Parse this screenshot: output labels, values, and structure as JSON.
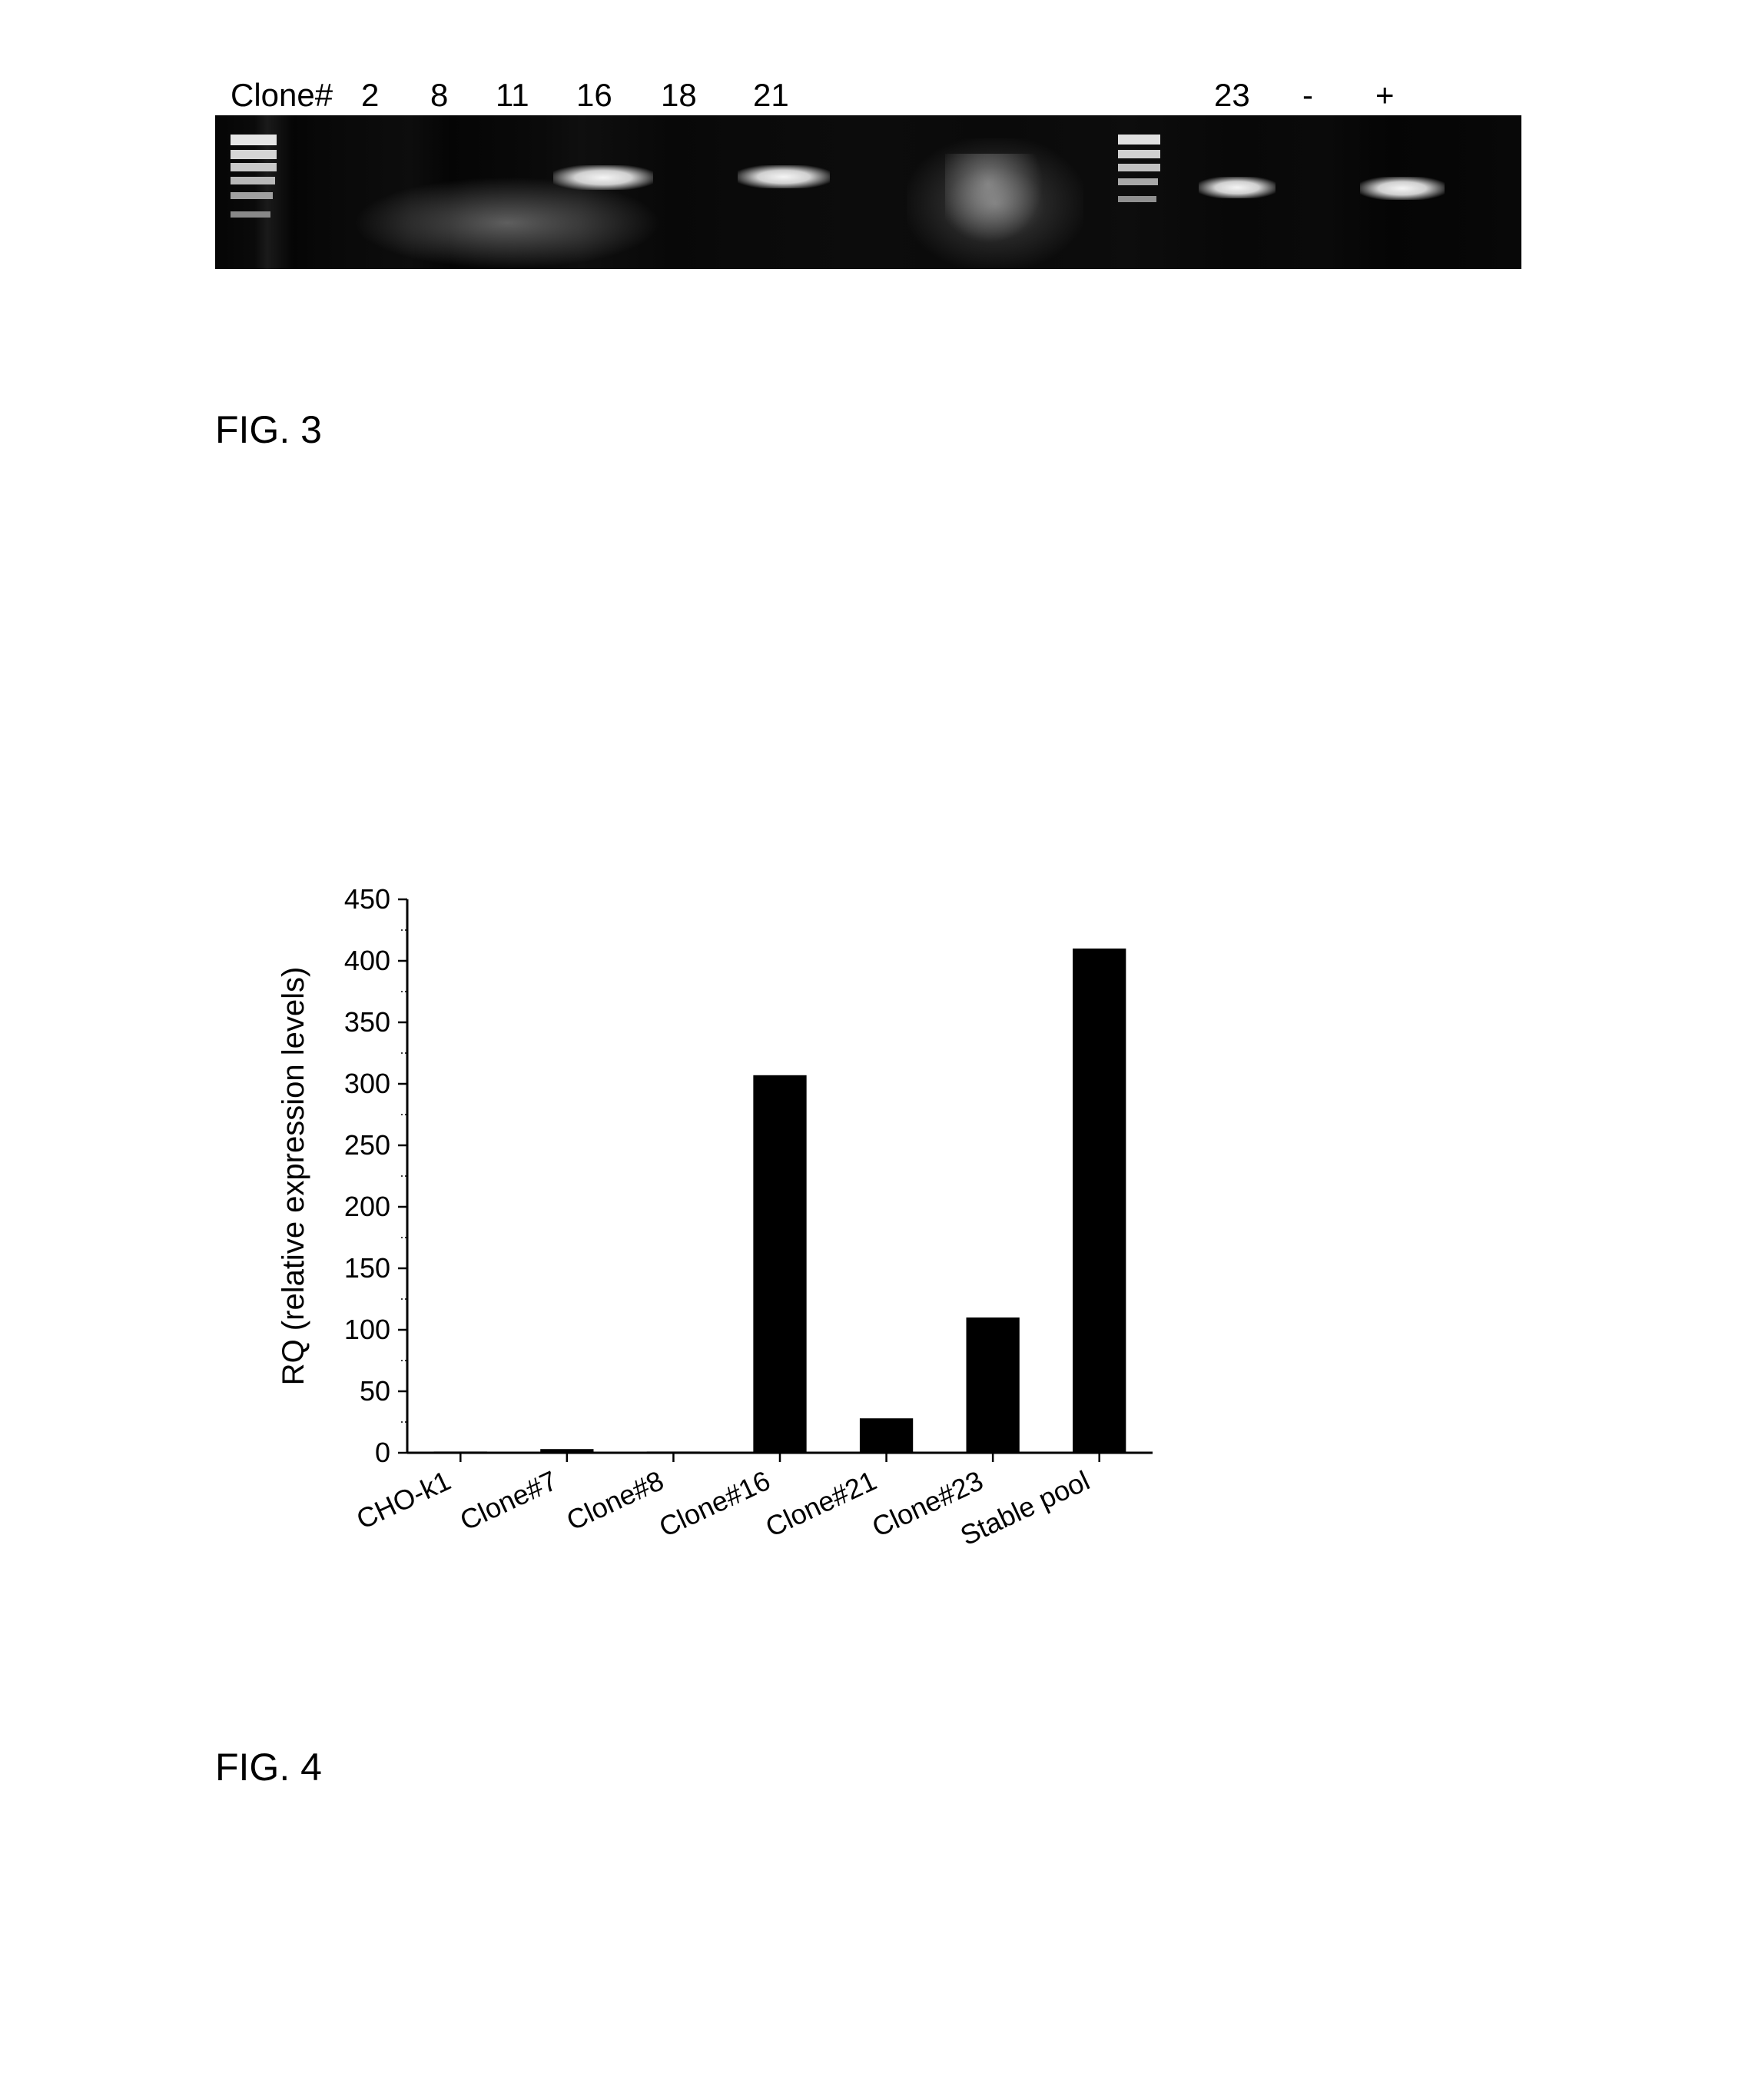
{
  "gel": {
    "title_prefix": "Clone#",
    "lanes": [
      "2",
      "8",
      "11",
      "16",
      "18",
      "21",
      "23",
      "-",
      "+"
    ],
    "lane_positions": [
      280,
      370,
      450,
      555,
      665,
      780,
      1385,
      1500,
      1595
    ]
  },
  "fig3_label": "FIG. 3",
  "fig4_label": "FIG. 4",
  "chart": {
    "type": "bar",
    "ylabel": "RQ (relative expression levels)",
    "categories": [
      "CHO-k1",
      "Clone#7",
      "Clone#8",
      "Clone#16",
      "Clone#21",
      "Clone#23",
      "Stable pool"
    ],
    "values": [
      1,
      3,
      1,
      307,
      28,
      110,
      410
    ],
    "ylim": [
      0,
      450
    ],
    "ytick_step": 50,
    "yticks": [
      0,
      50,
      100,
      150,
      200,
      250,
      300,
      350,
      400,
      450
    ],
    "bar_color": "#000000",
    "background_color": "#ffffff",
    "axis_color": "#000000",
    "bar_width": 0.5,
    "tick_fontsize": 36,
    "label_fontsize": 40,
    "x_label_rotation": -25
  }
}
